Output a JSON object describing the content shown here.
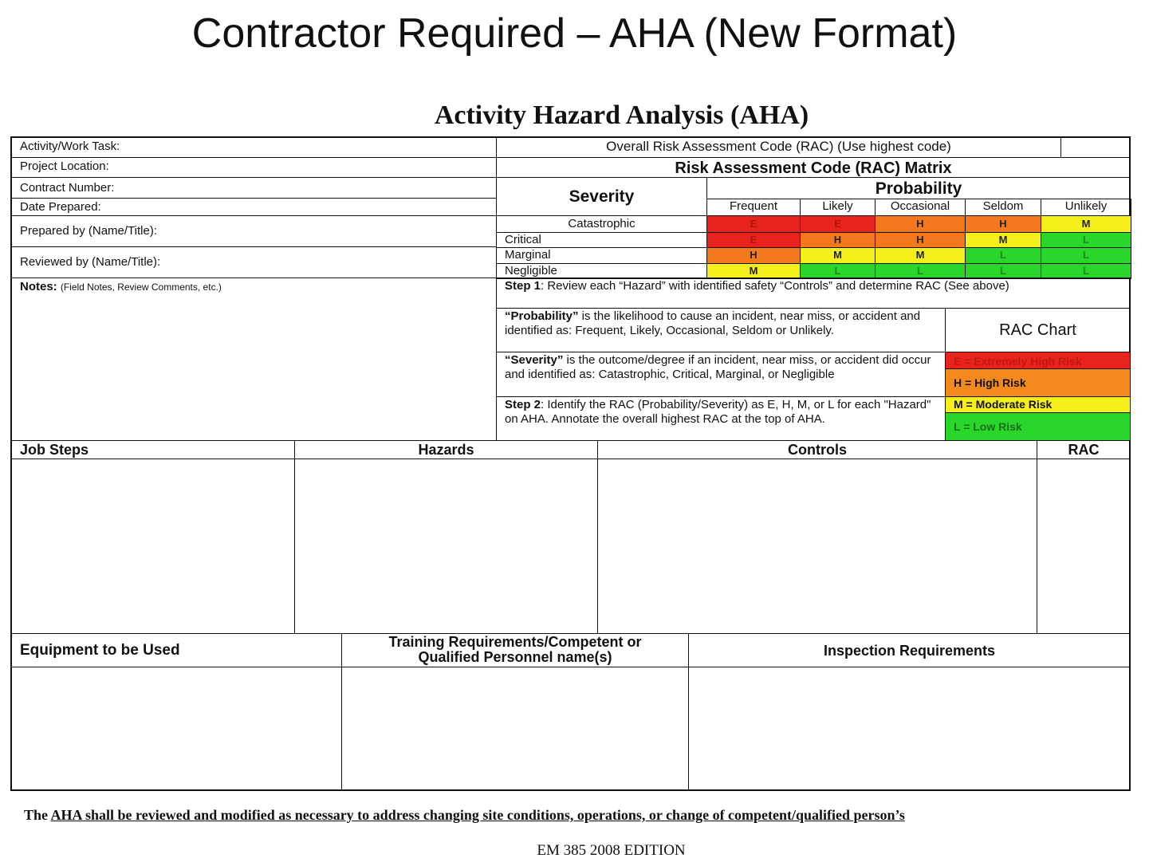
{
  "slide_title": "Contractor Required – AHA (New Format)",
  "form_title": "Activity Hazard Analysis (AHA)",
  "fields": [
    "Activity/Work Task:",
    "Project Location:",
    "Contract Number:",
    "Date Prepared:",
    "Prepared by (Name/Title):",
    "Reviewed by (Name/Title):"
  ],
  "notes_label": "Notes:",
  "notes_hint": "(Field Notes, Review Comments, etc.)",
  "overall_rac": "Overall Risk Assessment Code (RAC) (Use highest code)",
  "matrix_title": "Risk Assessment Code (RAC) Matrix",
  "severity_label": "Severity",
  "probability_label": "Probability",
  "probabilities": [
    "Frequent",
    "Likely",
    "Occasional",
    "Seldom",
    "Unlikely"
  ],
  "severities": [
    "Catastrophic",
    "Critical",
    "Marginal",
    "Negligible"
  ],
  "matrix": [
    [
      "E",
      "E",
      "H",
      "H",
      "M"
    ],
    [
      "E",
      "H",
      "H",
      "M",
      "L"
    ],
    [
      "H",
      "M",
      "M",
      "L",
      "L"
    ],
    [
      "M",
      "L",
      "L",
      "L",
      "L"
    ]
  ],
  "colors": {
    "E": "#e8231c",
    "H": "#f4791e",
    "M": "#f5f01c",
    "L": "#2bd62b"
  },
  "step1": {
    "label": "Step 1",
    "text": ": Review each “Hazard” with identified safety “Controls” and determine RAC (See above)"
  },
  "probability_def": {
    "label": "“Probability”",
    "text": " is the likelihood to cause an incident, near miss, or accident and identified as: Frequent, Likely, Occasional, Seldom or Unlikely."
  },
  "severity_def": {
    "label": "“Severity”",
    "text": " is the outcome/degree if an incident, near miss, or accident did occur and identified as: Catastrophic, Critical, Marginal, or Negligible"
  },
  "step2": {
    "label": "Step 2",
    "text": ": Identify the RAC (Probability/Severity) as E, H, M, or L for each \"Hazard\" on AHA. Annotate the overall highest RAC at the top of AHA."
  },
  "rac_chart": {
    "title": "RAC Chart",
    "items": [
      "E = Extremely High Risk",
      "H = High Risk",
      "M = Moderate Risk",
      "L = Low Risk"
    ]
  },
  "columns1": [
    "Job Steps",
    "Hazards",
    "Controls",
    "RAC"
  ],
  "columns2": [
    "Equipment to be Used",
    "Training Requirements/Competent or Qualified Personnel name(s)",
    "Inspection Requirements"
  ],
  "footer": {
    "prefix": "The ",
    "underlined": "AHA shall be reviewed and modified as necessary to address changing site conditions, operations, or change of competent/qualified person’s",
    "edition": "EM 385 2008 EDITION"
  }
}
